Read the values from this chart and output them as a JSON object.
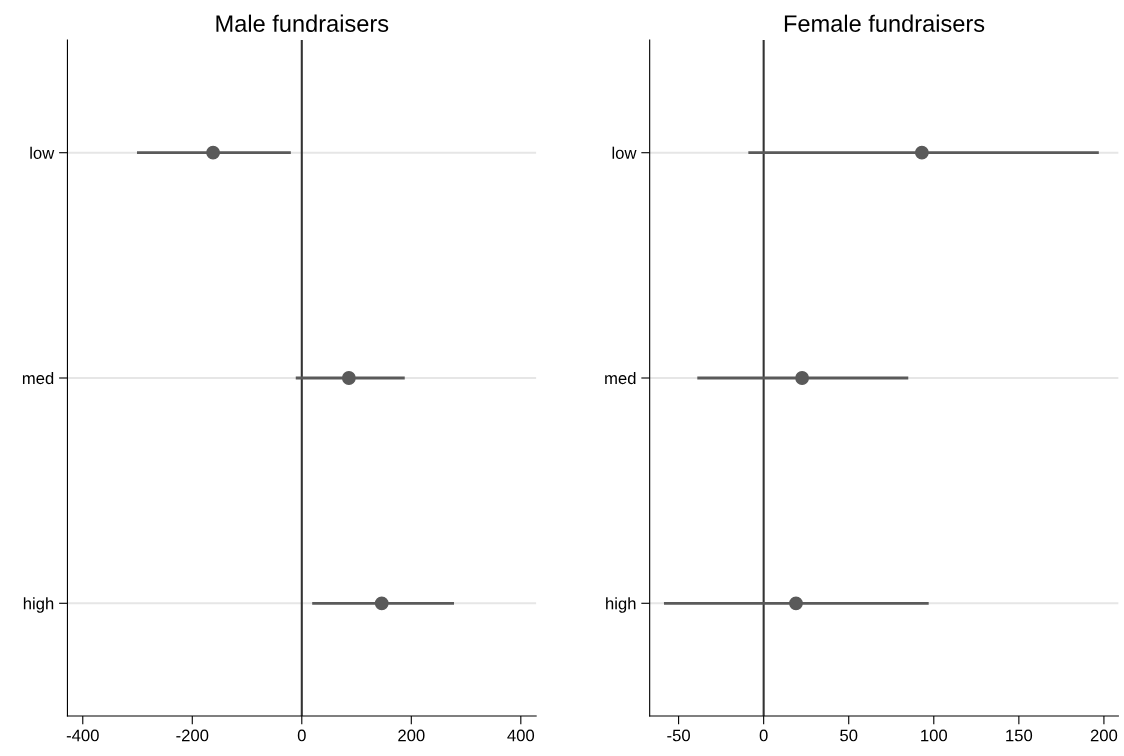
{
  "chart_data": [
    {
      "type": "scatter",
      "title": "Male fundraisers",
      "orientation": "horizontal",
      "categories": [
        "low",
        "med",
        "high"
      ],
      "grid": "y",
      "marker": "circle",
      "series": [
        {
          "color": "#5a5a5a",
          "values": [
            -162,
            86,
            146
          ],
          "errors": [
            [
              -301,
              -20
            ],
            [
              -11,
              188
            ],
            [
              19,
              278
            ]
          ]
        }
      ],
      "xlim": [
        -428,
        428
      ],
      "xticks": [
        -400,
        -200,
        0,
        200,
        400
      ],
      "ref_lines": [
        {
          "axis": "x",
          "value": 0,
          "color": "#333333"
        }
      ]
    },
    {
      "type": "scatter",
      "title": "Female fundraisers",
      "orientation": "horizontal",
      "categories": [
        "low",
        "med",
        "high"
      ],
      "grid": "y",
      "marker": "circle",
      "series": [
        {
          "color": "#5a5a5a",
          "values": [
            93,
            22.6,
            19
          ],
          "errors": [
            [
              -9,
              197
            ],
            [
              -39,
              85
            ],
            [
              -58.6,
              97
            ]
          ]
        }
      ],
      "xlim": [
        -67,
        208.5
      ],
      "xticks": [
        -50,
        0,
        50,
        100,
        150,
        200
      ],
      "ref_lines": [
        {
          "axis": "x",
          "value": 0,
          "color": "#333333"
        }
      ]
    }
  ]
}
